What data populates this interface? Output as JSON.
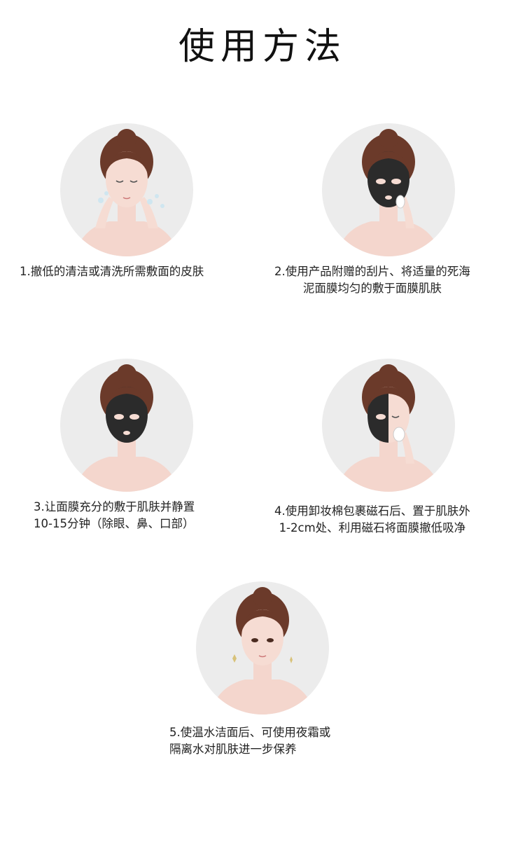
{
  "title": "使用方法",
  "colors": {
    "background": "#ffffff",
    "circle": "#ececec",
    "hair": "#6b3a2a",
    "skin": "#f6dcd3",
    "mask": "#2b2b2b",
    "text": "#222222"
  },
  "steps": [
    {
      "line1": "1.撤低的清洁或清洗所需敷面的皮肤",
      "line2": "",
      "illustration": "face-washing"
    },
    {
      "line1": "2.使用产品附赠的刮片、将适量的死海",
      "line2": "泥面膜均匀的敷于面膜肌肤",
      "illustration": "mask-applying"
    },
    {
      "line1": "3.让面膜充分的敷于肌肤并静置",
      "line2": "10-15分钟（除眼、鼻、口部）",
      "illustration": "mask-full"
    },
    {
      "line1": "4.使用卸妆棉包裹磁石后、置于肌肤外",
      "line2": "1-2cm处、利用磁石将面膜撤低吸净",
      "illustration": "mask-removing"
    },
    {
      "line1": "5.使温水洁面后、可使用夜霜或",
      "line2": "隔离水对肌肤进一步保养",
      "illustration": "clean-face"
    }
  ]
}
